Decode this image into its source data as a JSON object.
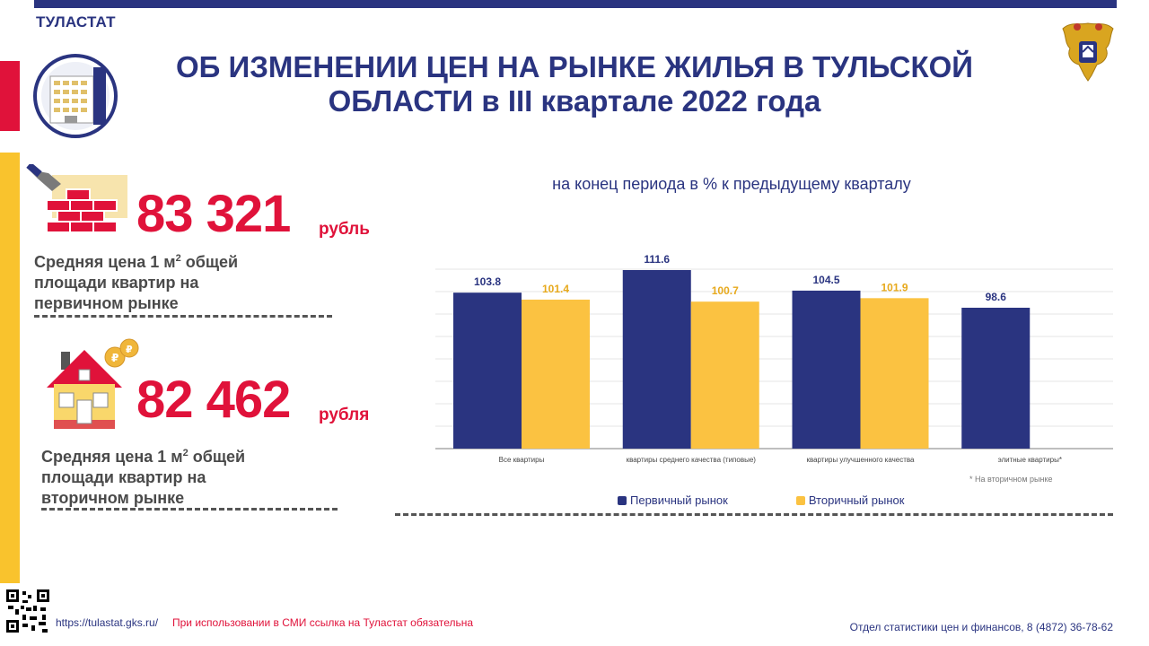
{
  "header": {
    "org": "ТУЛАСТАТ",
    "title_line1": "ОБ ИЗМЕНЕНИИ ЦЕН НА РЫНКЕ ЖИЛЬЯ В ТУЛЬСКОЙ",
    "title_line2": "ОБЛАСТИ в III квартале 2022 года"
  },
  "icons": {
    "logo": "building-icon",
    "emblem": "double-headed-eagle-icon",
    "primary": "bricks-trowel-icon",
    "secondary": "house-coins-icon",
    "qr": "qr-code-icon"
  },
  "stats": {
    "primary": {
      "value": "83 321",
      "unit": "рубль",
      "desc_line1_a": "Средняя цена 1 м",
      "desc_line1_sup": "2",
      "desc_line1_b": " общей",
      "desc_line2": "площади квартир на",
      "desc_line3": "первичном рынке"
    },
    "secondary": {
      "value": "82 462",
      "unit": "рубля",
      "desc_line1_a": "Средняя цена 1 м",
      "desc_line1_sup": "2",
      "desc_line1_b": " общей",
      "desc_line2": "площади квартир на",
      "desc_line3": "вторичном рынке"
    }
  },
  "chart_data": {
    "type": "bar",
    "title": "на конец периода в % к предыдущему кварталу",
    "categories": [
      "Все квартиры",
      "квартиры среднего качества (типовые)",
      "квартиры улучшенного качества",
      "элитные квартиры*"
    ],
    "series": [
      {
        "name": "Первичный рынок",
        "color": "#2a3480",
        "values": [
          103.8,
          111.6,
          104.5,
          98.6
        ]
      },
      {
        "name": "Вторичный рынок",
        "color": "#fbc241",
        "values": [
          101.4,
          100.7,
          101.9,
          null
        ]
      }
    ],
    "footnote": "* На вторичном рынке",
    "grid": true,
    "legend": "bottom"
  },
  "footer": {
    "link": "https://tulastat.gks.ru/",
    "warning": "При использовании в СМИ ссылка на Туластат обязательна",
    "department": "Отдел статистики цен и финансов, 8 (4872) 36-78-62"
  }
}
